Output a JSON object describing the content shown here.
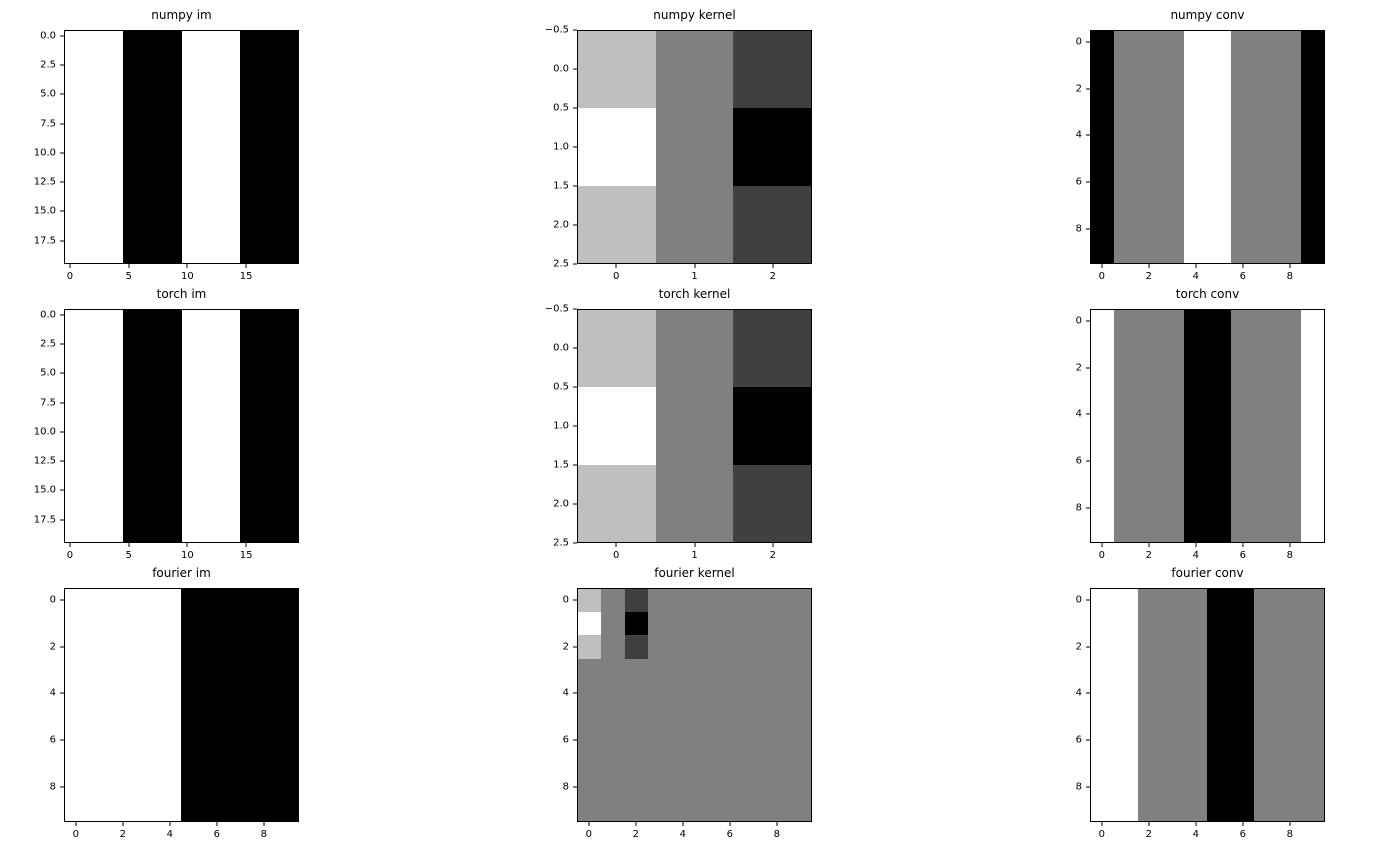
{
  "figure": {
    "background": "#ffffff",
    "title_color": "#000000",
    "tick_color": "#000000",
    "axis_color": "#000000"
  },
  "chart_data": {
    "type": "heatmap",
    "colormap": "gray",
    "grid": false,
    "legend": "none",
    "value_colors": {
      "0": "#000000",
      "0.25": "#404040",
      "0.5": "#808080",
      "0.75": "#bfbfbf",
      "1": "#ffffff"
    },
    "plots": [
      {
        "id": "numpy-im",
        "title": "numpy im",
        "row": 0,
        "col": 0,
        "nrows": 20,
        "ncols": 20,
        "mode": "columns",
        "columns": [
          1,
          1,
          1,
          1,
          1,
          0,
          0,
          0,
          0,
          0,
          1,
          1,
          1,
          1,
          1,
          0,
          0,
          0,
          0,
          0
        ],
        "xticks": {
          "labels": [
            "0",
            "5",
            "10",
            "15"
          ],
          "values": [
            0,
            5,
            10,
            15
          ]
        },
        "yticks": {
          "labels": [
            "0.0",
            "2.5",
            "5.0",
            "7.5",
            "10.0",
            "12.5",
            "15.0",
            "17.5"
          ],
          "values": [
            0,
            2.5,
            5,
            7.5,
            10,
            12.5,
            15,
            17.5
          ]
        }
      },
      {
        "id": "numpy-kernel",
        "title": "numpy kernel",
        "row": 0,
        "col": 1,
        "nrows": 3,
        "ncols": 3,
        "mode": "matrix",
        "matrix": [
          [
            0.75,
            0.5,
            0.25
          ],
          [
            1.0,
            0.5,
            0.0
          ],
          [
            0.75,
            0.5,
            0.25
          ]
        ],
        "xticks": {
          "labels": [
            "0",
            "1",
            "2"
          ],
          "values": [
            0,
            1,
            2
          ]
        },
        "yticks": {
          "labels": [
            "−0.5",
            "0.0",
            "0.5",
            "1.0",
            "1.5",
            "2.0",
            "2.5"
          ],
          "values": [
            -0.5,
            0,
            0.5,
            1,
            1.5,
            2,
            2.5
          ]
        }
      },
      {
        "id": "numpy-conv",
        "title": "numpy conv",
        "row": 0,
        "col": 2,
        "nrows": 10,
        "ncols": 10,
        "mode": "columns",
        "columns": [
          0,
          0.5,
          0.5,
          0.5,
          1,
          1,
          0.5,
          0.5,
          0.5,
          0
        ],
        "xticks": {
          "labels": [
            "0",
            "2",
            "4",
            "6",
            "8"
          ],
          "values": [
            0,
            2,
            4,
            6,
            8
          ]
        },
        "yticks": {
          "labels": [
            "0",
            "2",
            "4",
            "6",
            "8"
          ],
          "values": [
            0,
            2,
            4,
            6,
            8
          ]
        }
      },
      {
        "id": "torch-im",
        "title": "torch im",
        "row": 1,
        "col": 0,
        "nrows": 20,
        "ncols": 20,
        "mode": "columns",
        "columns": [
          1,
          1,
          1,
          1,
          1,
          0,
          0,
          0,
          0,
          0,
          1,
          1,
          1,
          1,
          1,
          0,
          0,
          0,
          0,
          0
        ],
        "xticks": {
          "labels": [
            "0",
            "5",
            "10",
            "15"
          ],
          "values": [
            0,
            5,
            10,
            15
          ]
        },
        "yticks": {
          "labels": [
            "0.0",
            "2.5",
            "5.0",
            "7.5",
            "10.0",
            "12.5",
            "15.0",
            "17.5"
          ],
          "values": [
            0,
            2.5,
            5,
            7.5,
            10,
            12.5,
            15,
            17.5
          ]
        }
      },
      {
        "id": "torch-kernel",
        "title": "torch kernel",
        "row": 1,
        "col": 1,
        "nrows": 3,
        "ncols": 3,
        "mode": "matrix",
        "matrix": [
          [
            0.75,
            0.5,
            0.25
          ],
          [
            1.0,
            0.5,
            0.0
          ],
          [
            0.75,
            0.5,
            0.25
          ]
        ],
        "xticks": {
          "labels": [
            "0",
            "1",
            "2"
          ],
          "values": [
            0,
            1,
            2
          ]
        },
        "yticks": {
          "labels": [
            "−0.5",
            "0.0",
            "0.5",
            "1.0",
            "1.5",
            "2.0",
            "2.5"
          ],
          "values": [
            -0.5,
            0,
            0.5,
            1,
            1.5,
            2,
            2.5
          ]
        }
      },
      {
        "id": "torch-conv",
        "title": "torch conv",
        "row": 1,
        "col": 2,
        "nrows": 10,
        "ncols": 10,
        "mode": "columns",
        "columns": [
          1,
          0.5,
          0.5,
          0.5,
          0,
          0,
          0.5,
          0.5,
          0.5,
          1
        ],
        "xticks": {
          "labels": [
            "0",
            "2",
            "4",
            "6",
            "8"
          ],
          "values": [
            0,
            2,
            4,
            6,
            8
          ]
        },
        "yticks": {
          "labels": [
            "0",
            "2",
            "4",
            "6",
            "8"
          ],
          "values": [
            0,
            2,
            4,
            6,
            8
          ]
        }
      },
      {
        "id": "fourier-im",
        "title": "fourier im",
        "row": 2,
        "col": 0,
        "nrows": 10,
        "ncols": 10,
        "mode": "columns",
        "columns": [
          1,
          1,
          1,
          1,
          1,
          0,
          0,
          0,
          0,
          0
        ],
        "xticks": {
          "labels": [
            "0",
            "2",
            "4",
            "6",
            "8"
          ],
          "values": [
            0,
            2,
            4,
            6,
            8
          ]
        },
        "yticks": {
          "labels": [
            "0",
            "2",
            "4",
            "6",
            "8"
          ],
          "values": [
            0,
            2,
            4,
            6,
            8
          ]
        }
      },
      {
        "id": "fourier-kernel",
        "title": "fourier kernel",
        "row": 2,
        "col": 1,
        "nrows": 10,
        "ncols": 10,
        "mode": "matrix",
        "matrix": [
          [
            0.75,
            0.5,
            0.25,
            0.5,
            0.5,
            0.5,
            0.5,
            0.5,
            0.5,
            0.5
          ],
          [
            1.0,
            0.5,
            0.0,
            0.5,
            0.5,
            0.5,
            0.5,
            0.5,
            0.5,
            0.5
          ],
          [
            0.75,
            0.5,
            0.25,
            0.5,
            0.5,
            0.5,
            0.5,
            0.5,
            0.5,
            0.5
          ],
          [
            0.5,
            0.5,
            0.5,
            0.5,
            0.5,
            0.5,
            0.5,
            0.5,
            0.5,
            0.5
          ],
          [
            0.5,
            0.5,
            0.5,
            0.5,
            0.5,
            0.5,
            0.5,
            0.5,
            0.5,
            0.5
          ],
          [
            0.5,
            0.5,
            0.5,
            0.5,
            0.5,
            0.5,
            0.5,
            0.5,
            0.5,
            0.5
          ],
          [
            0.5,
            0.5,
            0.5,
            0.5,
            0.5,
            0.5,
            0.5,
            0.5,
            0.5,
            0.5
          ],
          [
            0.5,
            0.5,
            0.5,
            0.5,
            0.5,
            0.5,
            0.5,
            0.5,
            0.5,
            0.5
          ],
          [
            0.5,
            0.5,
            0.5,
            0.5,
            0.5,
            0.5,
            0.5,
            0.5,
            0.5,
            0.5
          ],
          [
            0.5,
            0.5,
            0.5,
            0.5,
            0.5,
            0.5,
            0.5,
            0.5,
            0.5,
            0.5
          ]
        ],
        "xticks": {
          "labels": [
            "0",
            "2",
            "4",
            "6",
            "8"
          ],
          "values": [
            0,
            2,
            4,
            6,
            8
          ]
        },
        "yticks": {
          "labels": [
            "0",
            "2",
            "4",
            "6",
            "8"
          ],
          "values": [
            0,
            2,
            4,
            6,
            8
          ]
        }
      },
      {
        "id": "fourier-conv",
        "title": "fourier conv",
        "row": 2,
        "col": 2,
        "nrows": 10,
        "ncols": 10,
        "mode": "columns",
        "columns": [
          1,
          1,
          0.5,
          0.5,
          0.5,
          0,
          0,
          0.5,
          0.5,
          0.5
        ],
        "xticks": {
          "labels": [
            "0",
            "2",
            "4",
            "6",
            "8"
          ],
          "values": [
            0,
            2,
            4,
            6,
            8
          ]
        },
        "yticks": {
          "labels": [
            "0",
            "2",
            "4",
            "6",
            "8"
          ],
          "values": [
            0,
            2,
            4,
            6,
            8
          ]
        }
      }
    ]
  }
}
